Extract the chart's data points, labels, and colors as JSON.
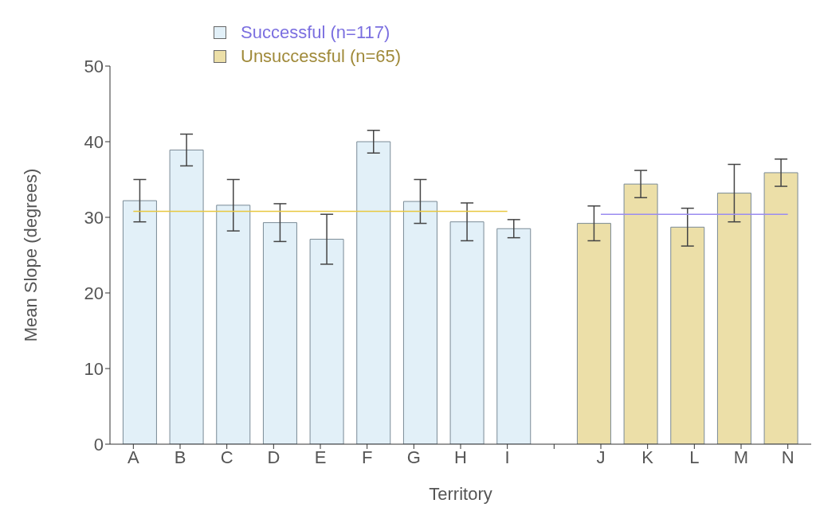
{
  "chart_data": {
    "type": "bar",
    "xlabel": "Territory",
    "ylabel": "Mean Slope (degrees)",
    "categories": [
      "A",
      "B",
      "C",
      "D",
      "E",
      "F",
      "G",
      "H",
      "I",
      null,
      "J",
      "K",
      "L",
      "M",
      "N"
    ],
    "series": [
      {
        "name": "Successful (n=117)",
        "color": "#e2f0f8",
        "values": [
          32.2,
          38.9,
          31.6,
          29.3,
          27.1,
          40.0,
          32.1,
          29.4,
          28.5,
          null,
          null,
          null,
          null,
          null,
          null
        ],
        "errors": [
          2.8,
          2.1,
          3.4,
          2.5,
          3.3,
          1.5,
          2.9,
          2.5,
          1.2,
          null,
          null,
          null,
          null,
          null,
          null
        ]
      },
      {
        "name": "Unsuccessful (n=65)",
        "color": "#ecdfa8",
        "values": [
          null,
          null,
          null,
          null,
          null,
          null,
          null,
          null,
          null,
          null,
          29.2,
          34.4,
          28.7,
          33.2,
          35.9
        ],
        "errors": [
          null,
          null,
          null,
          null,
          null,
          null,
          null,
          null,
          null,
          null,
          2.3,
          1.8,
          2.5,
          3.8,
          1.8
        ]
      },
      {
        "type": "line",
        "color": "#e8c840",
        "values": [
          30.8,
          30.8,
          30.8,
          30.8,
          30.8,
          30.8,
          30.8,
          30.8,
          30.8,
          null,
          null,
          null,
          null,
          null,
          null
        ]
      },
      {
        "type": "line",
        "color": "#9a8cf0",
        "values": [
          null,
          null,
          null,
          null,
          null,
          null,
          null,
          null,
          null,
          null,
          30.4,
          30.4,
          30.4,
          30.4,
          30.4
        ]
      }
    ],
    "ylim": [
      0,
      50
    ],
    "yticks": [
      0,
      10,
      20,
      30,
      40,
      50
    ],
    "grid": false,
    "legend": "top left"
  }
}
